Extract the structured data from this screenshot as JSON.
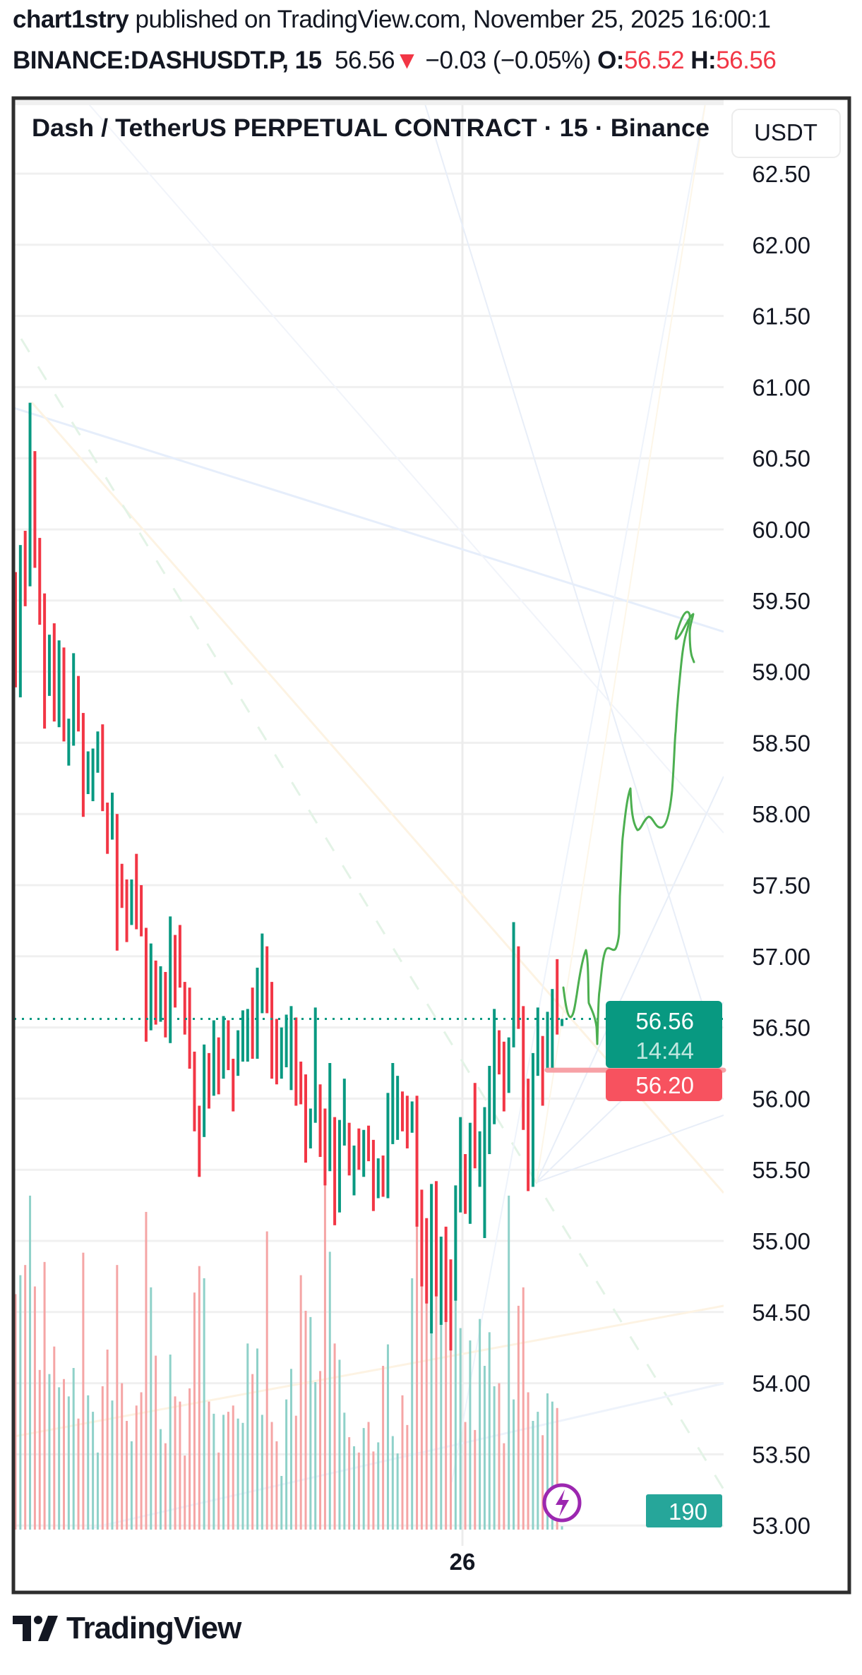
{
  "header": {
    "author": "chart1stry",
    "published_text": " published on TradingView.com, November 25, 2025 16:00:1",
    "symbol": "BINANCE:DASHUSDT.P, 15",
    "last_price": "56.56",
    "change_arrow": "▼",
    "change": "−0.03 (−0.05%)",
    "open_label": "O:",
    "open_value": "56.52",
    "high_label": "H:",
    "high_value": "56.56"
  },
  "chart": {
    "title": "Dash / TetherUS PERPETUAL CONTRACT · 15 · Binance",
    "currency_button": "USDT",
    "time_label": "26",
    "price_ticks": [
      "62.50",
      "62.00",
      "61.50",
      "61.00",
      "60.50",
      "60.00",
      "59.50",
      "59.00",
      "58.50",
      "58.00",
      "57.50",
      "57.00",
      "56.50",
      "56.00",
      "55.50",
      "55.00",
      "54.50",
      "54.00",
      "53.50",
      "53.00"
    ],
    "last_price_label": "56.56",
    "countdown_label": "14:44",
    "alert_price_label": "56.20",
    "volume_label": "190",
    "logo_text": "TradingView",
    "colors": {
      "up": "#089981",
      "down": "#f23645",
      "drawing": "#4caf50",
      "alert_line": "#f7a1a6",
      "lightning": "#9c27b0"
    }
  },
  "chart_data": {
    "type": "bar",
    "title": "Dash / TetherUS PERPETUAL CONTRACT · 15 · Binance",
    "ylabel": "USDT",
    "ylim": [
      53.0,
      62.75
    ],
    "grid": true,
    "last_price": 56.56,
    "horizontal_line": 56.2,
    "candle_fields": [
      "direction",
      "high",
      "low"
    ],
    "candles": [
      [
        "d",
        59.7,
        58.89
      ],
      [
        "u",
        59.89,
        58.82
      ],
      [
        "d",
        59.99,
        59.46
      ],
      [
        "u",
        60.89,
        59.6
      ],
      [
        "d",
        60.55,
        59.73
      ],
      [
        "d",
        59.94,
        59.33
      ],
      [
        "d",
        59.55,
        58.6
      ],
      [
        "u",
        59.26,
        58.83
      ],
      [
        "d",
        59.34,
        58.65
      ],
      [
        "u",
        59.22,
        58.61
      ],
      [
        "d",
        59.17,
        58.51
      ],
      [
        "u",
        58.67,
        58.34
      ],
      [
        "u",
        59.13,
        58.48
      ],
      [
        "d",
        58.97,
        58.58
      ],
      [
        "d",
        58.71,
        57.98
      ],
      [
        "u",
        58.44,
        58.14
      ],
      [
        "u",
        58.46,
        58.09
      ],
      [
        "u",
        58.58,
        58.29
      ],
      [
        "d",
        58.63,
        58.02
      ],
      [
        "d",
        58.08,
        57.72
      ],
      [
        "u",
        58.15,
        57.82
      ],
      [
        "d",
        58.0,
        57.04
      ],
      [
        "d",
        57.65,
        57.34
      ],
      [
        "d",
        57.54,
        57.1
      ],
      [
        "u",
        57.54,
        57.22
      ],
      [
        "d",
        57.72,
        57.19
      ],
      [
        "d",
        57.5,
        57.14
      ],
      [
        "d",
        57.2,
        56.4
      ],
      [
        "u",
        57.09,
        56.48
      ],
      [
        "d",
        56.97,
        56.52
      ],
      [
        "u",
        56.93,
        56.54
      ],
      [
        "d",
        56.89,
        56.43
      ],
      [
        "u",
        57.28,
        56.39
      ],
      [
        "d",
        57.15,
        56.64
      ],
      [
        "d",
        57.22,
        56.78
      ],
      [
        "d",
        56.82,
        56.45
      ],
      [
        "d",
        56.78,
        56.21
      ],
      [
        "d",
        56.33,
        55.77
      ],
      [
        "d",
        55.95,
        55.45
      ],
      [
        "u",
        56.38,
        55.73
      ],
      [
        "d",
        56.32,
        55.93
      ],
      [
        "u",
        56.55,
        56.02
      ],
      [
        "d",
        56.43,
        56.03
      ],
      [
        "u",
        56.58,
        56.14
      ],
      [
        "d",
        56.55,
        56.2
      ],
      [
        "d",
        56.28,
        55.91
      ],
      [
        "u",
        56.48,
        56.16
      ],
      [
        "u",
        56.62,
        56.26
      ],
      [
        "u",
        56.63,
        56.26
      ],
      [
        "d",
        56.78,
        56.28
      ],
      [
        "u",
        56.92,
        56.28
      ],
      [
        "u",
        57.16,
        56.6
      ],
      [
        "d",
        57.07,
        56.6
      ],
      [
        "d",
        56.82,
        56.14
      ],
      [
        "d",
        56.56,
        56.1
      ],
      [
        "u",
        56.5,
        56.14
      ],
      [
        "u",
        56.59,
        56.22
      ],
      [
        "u",
        56.65,
        56.06
      ],
      [
        "d",
        56.57,
        55.95
      ],
      [
        "d",
        56.26,
        55.96
      ],
      [
        "d",
        56.17,
        55.55
      ],
      [
        "u",
        55.93,
        55.65
      ],
      [
        "u",
        56.64,
        55.83
      ],
      [
        "d",
        56.1,
        55.59
      ],
      [
        "d",
        55.93,
        55.39
      ],
      [
        "u",
        56.25,
        55.49
      ],
      [
        "d",
        55.87,
        55.11
      ],
      [
        "u",
        55.85,
        55.2
      ],
      [
        "u",
        56.14,
        55.67
      ],
      [
        "d",
        55.83,
        55.46
      ],
      [
        "u",
        55.67,
        55.32
      ],
      [
        "d",
        55.79,
        55.5
      ],
      [
        "u",
        55.78,
        55.45
      ],
      [
        "d",
        55.81,
        55.56
      ],
      [
        "d",
        55.71,
        55.21
      ],
      [
        "u",
        55.58,
        55.3
      ],
      [
        "d",
        55.6,
        55.31
      ],
      [
        "u",
        56.04,
        55.3
      ],
      [
        "u",
        56.25,
        55.68
      ],
      [
        "u",
        56.16,
        55.71
      ],
      [
        "d",
        56.05,
        55.77
      ],
      [
        "d",
        56.02,
        55.65
      ],
      [
        "u",
        55.98,
        55.76
      ],
      [
        "d",
        56.02,
        55.1
      ],
      [
        "d",
        55.36,
        54.68
      ],
      [
        "d",
        55.16,
        54.56
      ],
      [
        "u",
        55.4,
        54.35
      ],
      [
        "d",
        55.42,
        54.61
      ],
      [
        "u",
        55.03,
        54.41
      ],
      [
        "d",
        55.1,
        54.43
      ],
      [
        "d",
        54.87,
        54.23
      ],
      [
        "u",
        55.39,
        54.58
      ],
      [
        "u",
        55.87,
        55.2
      ],
      [
        "d",
        55.61,
        55.19
      ],
      [
        "u",
        55.83,
        55.12
      ],
      [
        "d",
        56.11,
        55.51
      ],
      [
        "u",
        55.77,
        55.38
      ],
      [
        "u",
        55.94,
        55.02
      ],
      [
        "u",
        56.23,
        55.61
      ],
      [
        "u",
        56.63,
        55.82
      ],
      [
        "d",
        56.48,
        56.17
      ],
      [
        "d",
        56.4,
        55.91
      ],
      [
        "u",
        56.43,
        56.04
      ],
      [
        "u",
        57.24,
        56.36
      ],
      [
        "d",
        57.07,
        56.49
      ],
      [
        "d",
        56.65,
        55.78
      ],
      [
        "d",
        56.14,
        55.35
      ],
      [
        "u",
        56.32,
        55.38
      ],
      [
        "u",
        56.64,
        56.16
      ],
      [
        "d",
        56.44,
        55.95
      ],
      [
        "u",
        56.61,
        56.2
      ],
      [
        "u",
        56.77,
        56.21
      ],
      [
        "d",
        56.98,
        56.45
      ],
      [
        "u",
        56.56,
        56.51
      ]
    ],
    "volume": [
      13170,
      14230,
      14800,
      18680,
      13600,
      8930,
      14970,
      8700,
      10240,
      7960,
      8420,
      7450,
      9040,
      6210,
      15490,
      7510,
      6590,
      4310,
      8020,
      10070,
      7220,
      14800,
      8190,
      6080,
      4940,
      6940,
      7680,
      17770,
      13550,
      9730,
      5620,
      4830,
      9790,
      7450,
      7160,
      4140,
      7900,
      13260,
      14740,
      14060,
      7160,
      6480,
      4310,
      6420,
      6590,
      6940,
      6210,
      5970,
      10410,
      8700,
      10130,
      6420,
      16680,
      6020,
      4940,
      3000,
      7280,
      8990,
      6370,
      14230,
      12240,
      11890,
      8250,
      8870,
      21400,
      15540,
      10410,
      9500,
      6540,
      5170,
      4660,
      4310,
      5680,
      6020,
      4370,
      4880,
      9160,
      10360,
      5230,
      4260,
      7510,
      5850,
      14060,
      19760,
      16340,
      13550,
      12240,
      14120,
      13090,
      12350,
      12460,
      13890,
      11270,
      6020,
      10580,
      5570,
      11780,
      9160,
      11040,
      8020,
      8190,
      4830,
      18680,
      7280,
      12520,
      13550,
      7680,
      6080,
      6590,
      5280,
      7620,
      7160,
      6800,
      190
    ]
  }
}
